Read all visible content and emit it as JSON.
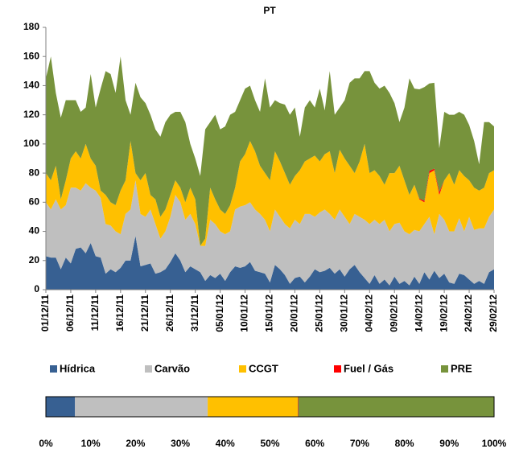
{
  "chart_data": [
    {
      "type": "stacked-area",
      "title": "PT",
      "categories": [
        "01/12/11",
        null,
        null,
        null,
        null,
        "06/12/11",
        null,
        null,
        null,
        null,
        "11/12/11",
        null,
        null,
        null,
        null,
        "16/12/11",
        null,
        null,
        null,
        null,
        "21/12/11",
        null,
        null,
        null,
        null,
        "26/12/11",
        null,
        null,
        null,
        null,
        "31/12/11",
        null,
        null,
        null,
        null,
        "05/01/12",
        null,
        null,
        null,
        null,
        "10/01/12",
        null,
        null,
        null,
        null,
        "15/01/12",
        null,
        null,
        null,
        null,
        "20/01/12",
        null,
        null,
        null,
        null,
        "25/01/12",
        null,
        null,
        null,
        null,
        "30/01/12",
        null,
        null,
        null,
        null,
        "04/02/12",
        null,
        null,
        null,
        null,
        "09/02/12",
        null,
        null,
        null,
        null,
        "14/02/12",
        null,
        null,
        null,
        null,
        "19/02/12",
        null,
        null,
        null,
        null,
        "24/02/12",
        null,
        null,
        null,
        null,
        "29/02/12"
      ],
      "ylim": [
        0,
        180
      ],
      "yticks": [
        0,
        20,
        40,
        60,
        80,
        100,
        120,
        140,
        160,
        180
      ],
      "series": [
        {
          "name": "Hídrica",
          "color": "#376092",
          "values": [
            23,
            22,
            22,
            14,
            22,
            18,
            28,
            29,
            25,
            32,
            23,
            22,
            11,
            14,
            12,
            15,
            20,
            20,
            37,
            16,
            17,
            18,
            11,
            12,
            14,
            19,
            25,
            20,
            12,
            16,
            14,
            12,
            6,
            10,
            8,
            11,
            6,
            12,
            16,
            15,
            16,
            19,
            13,
            12,
            11,
            5,
            17,
            14,
            10,
            4,
            8,
            9,
            5,
            9,
            14,
            12,
            13,
            15,
            11,
            14,
            9,
            14,
            17,
            12,
            8,
            4,
            10,
            4,
            7,
            3,
            9,
            4,
            6,
            3,
            9,
            4,
            12,
            7,
            13,
            8,
            11,
            5,
            4,
            11,
            10,
            7,
            4,
            6,
            4,
            12,
            14
          ]
        },
        {
          "name": "Carvão",
          "color": "#bfbfbf",
          "values": [
            37,
            33,
            40,
            41,
            36,
            52,
            42,
            39,
            48,
            38,
            45,
            41,
            34,
            30,
            28,
            23,
            32,
            35,
            38,
            36,
            33,
            37,
            34,
            23,
            26,
            31,
            40,
            40,
            36,
            36,
            31,
            18,
            24,
            38,
            37,
            29,
            32,
            28,
            39,
            42,
            42,
            41,
            42,
            40,
            37,
            35,
            38,
            36,
            35,
            38,
            40,
            36,
            47,
            43,
            36,
            41,
            42,
            37,
            37,
            41,
            41,
            31,
            35,
            38,
            40,
            41,
            38,
            41,
            41,
            37,
            36,
            42,
            34,
            35,
            32,
            36,
            33,
            43,
            25,
            44,
            37,
            35,
            36,
            38,
            30,
            43,
            37,
            36,
            38,
            38,
            41
          ]
        },
        {
          "name": "CCGT",
          "color": "#ffc000",
          "values": [
            20,
            20,
            23,
            7,
            17,
            20,
            25,
            22,
            27,
            20,
            17,
            5,
            20,
            16,
            18,
            30,
            23,
            47,
            5,
            23,
            30,
            10,
            17,
            15,
            15,
            15,
            10,
            10,
            12,
            18,
            17,
            0,
            5,
            22,
            17,
            15,
            14,
            18,
            15,
            31,
            35,
            42,
            40,
            33,
            32,
            35,
            40,
            38,
            35,
            30,
            30,
            37,
            36,
            38,
            42,
            35,
            38,
            43,
            32,
            41,
            40,
            40,
            28,
            38,
            52,
            35,
            34,
            33,
            24,
            40,
            35,
            39,
            35,
            27,
            31,
            22,
            15,
            30,
            44,
            13,
            27,
            40,
            32,
            33,
            38,
            25,
            29,
            26,
            28,
            30,
            27
          ]
        },
        {
          "name": "Fuel / Gás",
          "color": "#ff0000",
          "values": [
            0,
            0,
            0,
            0,
            0,
            0,
            0,
            0,
            0,
            0,
            0,
            0,
            0,
            0,
            0,
            0,
            0,
            0,
            0,
            0,
            0,
            0,
            0,
            0,
            0,
            0,
            0,
            0,
            0,
            0,
            0,
            0,
            0,
            0,
            0,
            0,
            0,
            0,
            0,
            0,
            0,
            0,
            0,
            0,
            0,
            0,
            0,
            0,
            0,
            0,
            0,
            0,
            0,
            0,
            0,
            0,
            0,
            0,
            0,
            0,
            0,
            0,
            0,
            0,
            0,
            0,
            0,
            0,
            0,
            0,
            0,
            0,
            0,
            0,
            0,
            0.5,
            1,
            1.5,
            1,
            2,
            0,
            0,
            0,
            0,
            0,
            0,
            0,
            0,
            0,
            0,
            0
          ]
        },
        {
          "name": "PRE",
          "color": "#77933c",
          "values": [
            65,
            85,
            50,
            56,
            55,
            40,
            35,
            32,
            25,
            58,
            40,
            70,
            85,
            88,
            77,
            92,
            55,
            18,
            62,
            57,
            48,
            55,
            48,
            55,
            60,
            55,
            47,
            52,
            55,
            30,
            28,
            48,
            75,
            45,
            58,
            55,
            60,
            62,
            52,
            42,
            45,
            38,
            35,
            37,
            65,
            50,
            35,
            40,
            47,
            48,
            47,
            23,
            37,
            40,
            33,
            50,
            30,
            55,
            40,
            29,
            40,
            57,
            65,
            57,
            50,
            70,
            60,
            60,
            68,
            55,
            48,
            30,
            50,
            80,
            66,
            75,
            78,
            60,
            59,
            30,
            47,
            40,
            48,
            40,
            42,
            38,
            32,
            18,
            45,
            35,
            30
          ]
        }
      ]
    },
    {
      "type": "stacked-bar-100",
      "values": [
        6.5,
        29.6,
        20.1,
        0.1,
        43.7
      ],
      "xlim": [
        0,
        100
      ],
      "xticks": [
        {
          "value": 0,
          "label": "0%"
        },
        {
          "value": 10,
          "label": "10%"
        },
        {
          "value": 20,
          "label": "20%"
        },
        {
          "value": 30,
          "label": "30%"
        },
        {
          "value": 40,
          "label": "40%"
        },
        {
          "value": 50,
          "label": "50%"
        },
        {
          "value": 60,
          "label": "60%"
        },
        {
          "value": 70,
          "label": "70%"
        },
        {
          "value": 80,
          "label": "80%"
        },
        {
          "value": 90,
          "label": "90%"
        },
        {
          "value": 100,
          "label": "100%"
        }
      ]
    }
  ]
}
